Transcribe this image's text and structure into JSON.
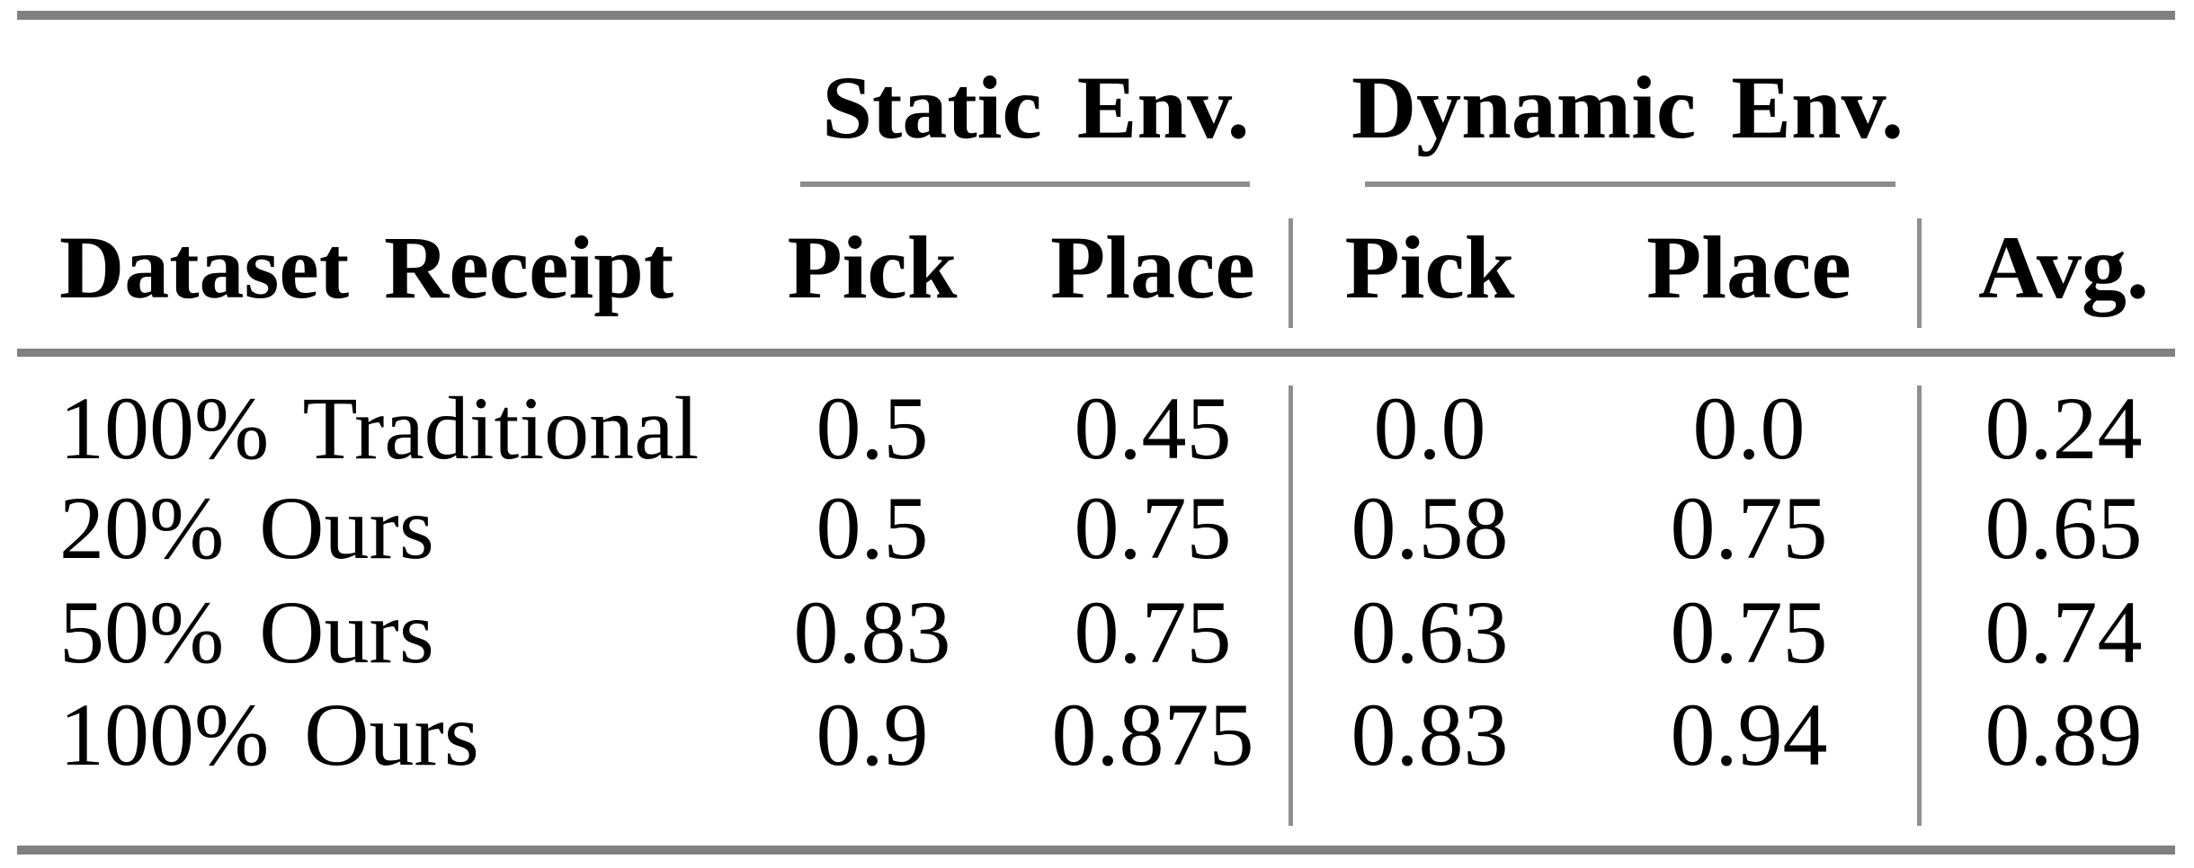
{
  "table": {
    "col_groups": [
      {
        "label": "Static Env."
      },
      {
        "label": "Dynamic Env."
      }
    ],
    "columns": {
      "dataset": "Dataset Receipt",
      "static_pick": "Pick",
      "static_place": "Place",
      "dynamic_pick": "Pick",
      "dynamic_place": "Place",
      "avg": "Avg."
    },
    "rows": [
      {
        "dataset": "100% Traditional",
        "static_pick": "0.5",
        "static_place": "0.45",
        "dynamic_pick": "0.0",
        "dynamic_place": "0.0",
        "avg": "0.24"
      },
      {
        "dataset": "20% Ours",
        "static_pick": "0.5",
        "static_place": "0.75",
        "dynamic_pick": "0.58",
        "dynamic_place": "0.75",
        "avg": "0.65"
      },
      {
        "dataset": "50% Ours",
        "static_pick": "0.83",
        "static_place": "0.75",
        "dynamic_pick": "0.63",
        "dynamic_place": "0.75",
        "avg": "0.74"
      },
      {
        "dataset": "100% Ours",
        "static_pick": "0.9",
        "static_place": "0.875",
        "dynamic_pick": "0.83",
        "dynamic_place": "0.94",
        "avg": "0.89"
      }
    ]
  },
  "colors": {
    "rule_gray": "#808080",
    "cmidrule_gray": "#8c8c8c",
    "vline_gray": "#8f8f8f",
    "text": "#000000",
    "background": "#ffffff"
  }
}
